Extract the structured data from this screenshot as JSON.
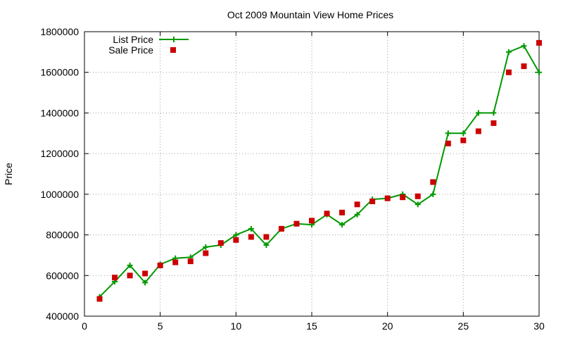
{
  "chart_data": {
    "type": "line",
    "title": "Oct 2009 Mountain View Home Prices",
    "xlabel": "",
    "ylabel": "Price",
    "xlim": [
      0,
      30
    ],
    "ylim": [
      400000,
      1800000
    ],
    "xticks": [
      0,
      5,
      10,
      15,
      20,
      25,
      30
    ],
    "yticks": [
      400000,
      600000,
      800000,
      1000000,
      1200000,
      1400000,
      1600000,
      1800000
    ],
    "grid": true,
    "legend_position": "top-left",
    "x": [
      1,
      2,
      3,
      4,
      5,
      6,
      7,
      8,
      9,
      10,
      11,
      12,
      13,
      14,
      15,
      16,
      17,
      18,
      19,
      20,
      21,
      22,
      23,
      24,
      25,
      26,
      27,
      28,
      29,
      30
    ],
    "series": [
      {
        "name": "List Price",
        "style": "line-with-plus-markers",
        "color": "#009900",
        "values": [
          495000,
          570000,
          650000,
          565000,
          655000,
          685000,
          690000,
          740000,
          750000,
          800000,
          830000,
          750000,
          830000,
          855000,
          850000,
          900000,
          850000,
          900000,
          975000,
          980000,
          1000000,
          950000,
          1000000,
          1300000,
          1300000,
          1400000,
          1400000,
          1700000,
          1730000,
          1600000
        ]
      },
      {
        "name": "Sale Price",
        "style": "square-markers",
        "color": "#cc0000",
        "values": [
          485000,
          590000,
          600000,
          610000,
          650000,
          665000,
          670000,
          710000,
          760000,
          775000,
          790000,
          790000,
          830000,
          855000,
          870000,
          905000,
          910000,
          950000,
          965000,
          980000,
          985000,
          990000,
          1060000,
          1250000,
          1265000,
          1310000,
          1350000,
          1600000,
          1630000,
          1745000
        ]
      }
    ]
  }
}
